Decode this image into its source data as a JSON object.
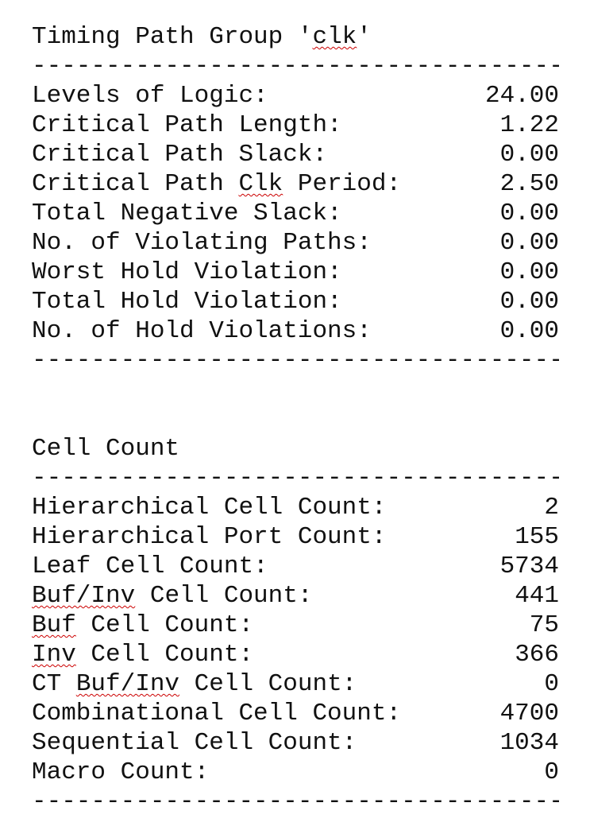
{
  "timing": {
    "title_prefix": "Timing Path Group '",
    "title_group": "clk",
    "title_suffix": "'",
    "rule": "-------------------------------------",
    "rows": [
      {
        "label": "Levels of Logic:",
        "value": "24.00"
      },
      {
        "label": "Critical Path Length:",
        "value": "1.22"
      },
      {
        "label": "Critical Path Slack:",
        "value": "0.00"
      },
      {
        "label_pre": "Critical Path ",
        "label_sq": "Clk",
        "label_post": " Period:",
        "value": "2.50"
      },
      {
        "label": "Total Negative Slack:",
        "value": "0.00"
      },
      {
        "label": "No. of Violating Paths:",
        "value": "0.00"
      },
      {
        "label": "Worst Hold Violation:",
        "value": "0.00"
      },
      {
        "label": "Total Hold Violation:",
        "value": "0.00"
      },
      {
        "label": "No. of Hold Violations:",
        "value": "0.00"
      }
    ]
  },
  "cells": {
    "title": "Cell Count",
    "rule": "-------------------------------------",
    "rows": [
      {
        "label": "Hierarchical Cell Count:",
        "value": "2"
      },
      {
        "label": "Hierarchical Port Count:",
        "value": "155"
      },
      {
        "label": "Leaf Cell Count:",
        "value": "5734"
      },
      {
        "label_pre": "",
        "label_sq": "Buf/Inv",
        "label_post": " Cell Count:",
        "value": "441"
      },
      {
        "label_pre": "",
        "label_sq": "Buf",
        "label_post": " Cell Count:",
        "value": "75"
      },
      {
        "label_pre": "",
        "label_sq": "Inv",
        "label_post": " Cell Count:",
        "value": "366"
      },
      {
        "label_pre": "CT ",
        "label_sq": "Buf/Inv",
        "label_post": " Cell Count:",
        "value": "0"
      },
      {
        "label": "Combinational Cell Count:",
        "value": "4700"
      },
      {
        "label": "Sequential Cell Count:",
        "value": "1034"
      },
      {
        "label": "Macro Count:",
        "value": "0"
      }
    ]
  }
}
